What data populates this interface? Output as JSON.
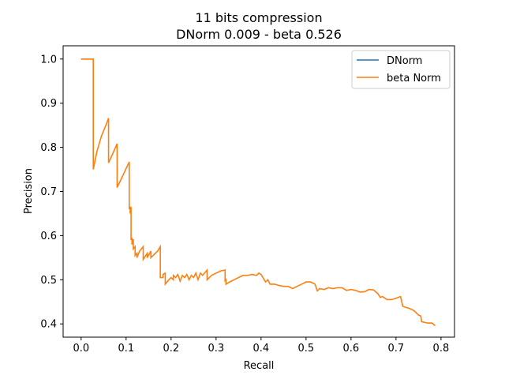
{
  "chart_data": {
    "type": "line",
    "title": "11 bits compression",
    "subtitle": "DNorm 0.009 - beta 0.526",
    "xlabel": "Recall",
    "ylabel": "Precision",
    "xlim": [
      -0.04,
      0.83
    ],
    "ylim": [
      0.37,
      1.03
    ],
    "xticks": [
      "0.0",
      "0.1",
      "0.2",
      "0.3",
      "0.4",
      "0.5",
      "0.6",
      "0.7",
      "0.8"
    ],
    "yticks": [
      "0.4",
      "0.5",
      "0.6",
      "0.7",
      "0.8",
      "0.9",
      "1.0"
    ],
    "grid": false,
    "legend_position": "top-right",
    "series": [
      {
        "name": "DNorm",
        "color": "#1f77b4",
        "x": [
          0.0,
          0.027
        ],
        "y": [
          1.0,
          1.0
        ]
      },
      {
        "name": "beta Norm",
        "color": "#ff7f0e",
        "x": [
          0.0,
          0.027,
          0.027,
          0.035,
          0.045,
          0.055,
          0.061,
          0.061,
          0.07,
          0.08,
          0.08,
          0.09,
          0.1,
          0.107,
          0.107,
          0.109,
          0.109,
          0.111,
          0.111,
          0.113,
          0.113,
          0.116,
          0.116,
          0.12,
          0.12,
          0.124,
          0.124,
          0.13,
          0.138,
          0.138,
          0.147,
          0.147,
          0.155,
          0.155,
          0.17,
          0.176,
          0.176,
          0.182,
          0.182,
          0.187,
          0.187,
          0.195,
          0.2,
          0.205,
          0.205,
          0.21,
          0.215,
          0.22,
          0.225,
          0.23,
          0.235,
          0.24,
          0.245,
          0.25,
          0.255,
          0.26,
          0.265,
          0.27,
          0.28,
          0.28,
          0.29,
          0.3,
          0.31,
          0.32,
          0.32,
          0.322,
          0.322,
          0.33,
          0.34,
          0.35,
          0.36,
          0.37,
          0.38,
          0.39,
          0.395,
          0.4,
          0.41,
          0.415,
          0.42,
          0.43,
          0.44,
          0.45,
          0.46,
          0.47,
          0.48,
          0.49,
          0.5,
          0.51,
          0.52,
          0.525,
          0.53,
          0.54,
          0.55,
          0.56,
          0.57,
          0.58,
          0.59,
          0.6,
          0.61,
          0.62,
          0.63,
          0.64,
          0.65,
          0.66,
          0.665,
          0.67,
          0.68,
          0.69,
          0.7,
          0.71,
          0.715,
          0.72,
          0.73,
          0.74,
          0.75,
          0.755,
          0.757,
          0.77,
          0.78,
          0.787
        ],
        "y": [
          1.0,
          1.0,
          0.75,
          0.79,
          0.825,
          0.85,
          0.866,
          0.765,
          0.785,
          0.808,
          0.709,
          0.73,
          0.752,
          0.767,
          0.66,
          0.666,
          0.65,
          0.665,
          0.59,
          0.595,
          0.58,
          0.592,
          0.57,
          0.575,
          0.555,
          0.56,
          0.55,
          0.565,
          0.575,
          0.546,
          0.56,
          0.55,
          0.565,
          0.55,
          0.565,
          0.575,
          0.505,
          0.505,
          0.512,
          0.515,
          0.49,
          0.5,
          0.505,
          0.5,
          0.51,
          0.505,
          0.512,
          0.497,
          0.51,
          0.505,
          0.512,
          0.5,
          0.51,
          0.505,
          0.515,
          0.5,
          0.515,
          0.51,
          0.522,
          0.5,
          0.51,
          0.515,
          0.52,
          0.522,
          0.498,
          0.5,
          0.49,
          0.495,
          0.5,
          0.505,
          0.51,
          0.51,
          0.512,
          0.51,
          0.515,
          0.512,
          0.495,
          0.5,
          0.49,
          0.49,
          0.487,
          0.485,
          0.485,
          0.48,
          0.485,
          0.49,
          0.495,
          0.495,
          0.49,
          0.475,
          0.48,
          0.478,
          0.482,
          0.48,
          0.482,
          0.482,
          0.476,
          0.478,
          0.476,
          0.472,
          0.473,
          0.478,
          0.477,
          0.468,
          0.46,
          0.462,
          0.455,
          0.455,
          0.458,
          0.462,
          0.44,
          0.438,
          0.435,
          0.43,
          0.42,
          0.418,
          0.405,
          0.402,
          0.402,
          0.396
        ]
      }
    ]
  }
}
